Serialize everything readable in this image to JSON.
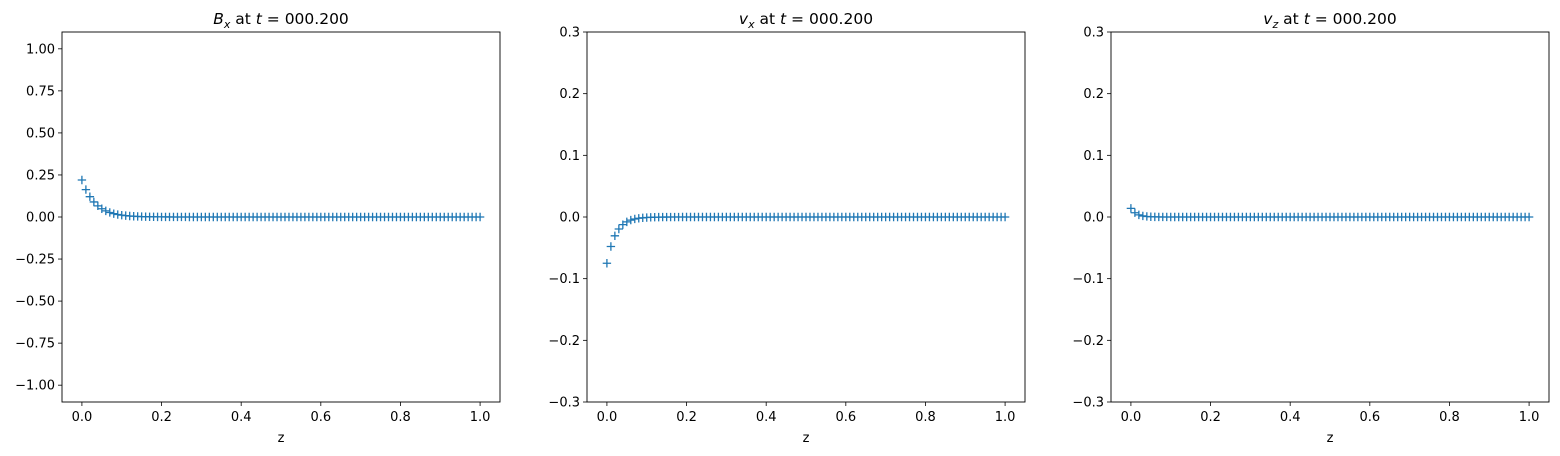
{
  "chart_data": [
    {
      "type": "scatter",
      "title": {
        "var": "B",
        "sub": "x",
        "rest": " at ",
        "tvar": "t",
        "tval": " = 000.200"
      },
      "xlabel": "z",
      "ylabel": "",
      "xlim": [
        -0.05,
        1.05
      ],
      "ylim": [
        -1.1,
        1.1
      ],
      "xticks": [
        0.0,
        0.2,
        0.4,
        0.6,
        0.8,
        1.0
      ],
      "xtick_labels": [
        "0.0",
        "0.2",
        "0.4",
        "0.6",
        "0.8",
        "1.0"
      ],
      "yticks": [
        -1.0,
        -0.75,
        -0.5,
        -0.25,
        0.0,
        0.25,
        0.5,
        0.75,
        1.0
      ],
      "ytick_labels": [
        "−1.00",
        "−0.75",
        "−0.50",
        "−0.25",
        "0.00",
        "0.25",
        "0.50",
        "0.75",
        "1.00"
      ],
      "marker": "+",
      "color": "#1f77b4",
      "n_points": 101,
      "profile": {
        "start": 0.22,
        "decay": 30
      }
    },
    {
      "type": "scatter",
      "title": {
        "var": "v",
        "sub": "x",
        "rest": " at ",
        "tvar": "t",
        "tval": " = 000.200"
      },
      "xlabel": "z",
      "ylabel": "",
      "xlim": [
        -0.05,
        1.05
      ],
      "ylim": [
        -0.3,
        0.3
      ],
      "xticks": [
        0.0,
        0.2,
        0.4,
        0.6,
        0.8,
        1.0
      ],
      "xtick_labels": [
        "0.0",
        "0.2",
        "0.4",
        "0.6",
        "0.8",
        "1.0"
      ],
      "yticks": [
        -0.3,
        -0.2,
        -0.1,
        0.0,
        0.1,
        0.2,
        0.3
      ],
      "ytick_labels": [
        "−0.3",
        "−0.2",
        "−0.1",
        "0.0",
        "0.1",
        "0.2",
        "0.3"
      ],
      "marker": "+",
      "color": "#1f77b4",
      "n_points": 101,
      "profile": {
        "start": -0.075,
        "decay": 45
      }
    },
    {
      "type": "scatter",
      "title": {
        "var": "v",
        "sub": "z",
        "rest": " at ",
        "tvar": "t",
        "tval": " = 000.200"
      },
      "xlabel": "z",
      "ylabel": "",
      "xlim": [
        -0.05,
        1.05
      ],
      "ylim": [
        -0.3,
        0.3
      ],
      "xticks": [
        0.0,
        0.2,
        0.4,
        0.6,
        0.8,
        1.0
      ],
      "xtick_labels": [
        "0.0",
        "0.2",
        "0.4",
        "0.6",
        "0.8",
        "1.0"
      ],
      "yticks": [
        -0.3,
        -0.2,
        -0.1,
        0.0,
        0.1,
        0.2,
        0.3
      ],
      "ytick_labels": [
        "−0.3",
        "−0.2",
        "−0.1",
        "0.0",
        "0.1",
        "0.2",
        "0.3"
      ],
      "marker": "+",
      "color": "#1f77b4",
      "n_points": 101,
      "profile": {
        "start": 0.014,
        "decay": 70
      }
    }
  ]
}
